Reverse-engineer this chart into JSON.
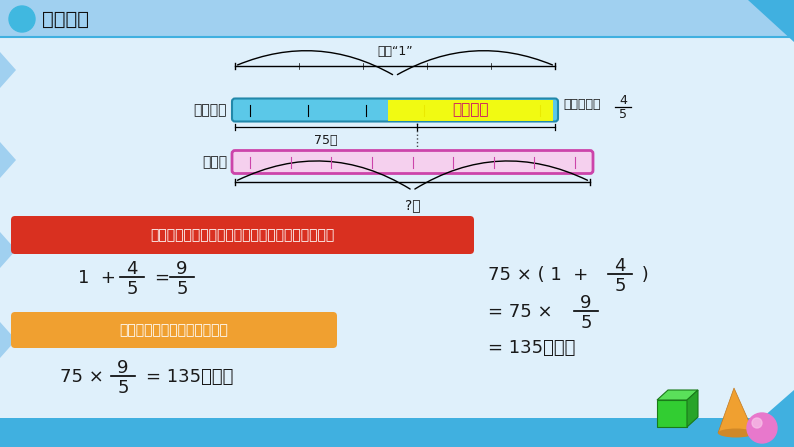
{
  "bg_color": "#e8f4fc",
  "header_color": "#87ceeb",
  "title": "新课譲解",
  "title_color": "#1a1a1a",
  "slide_bg": "#dff0fb",
  "bar1_color": "#5bc8e8",
  "bar2_color": "#cc44aa",
  "highlight_yellow": "#ffff00",
  "highlight_box_text": "几分之几",
  "red_box_color": "#d93020",
  "red_box_text": "先求婴儿每分钟心跳的次数是青少年的几分之几。",
  "orange_box_color": "#f0a030",
  "orange_box_text": "再求婴儿每分钟心跳的次数。",
  "label_qingshaonian": "青少年：",
  "label_ying_er": "婴儿：",
  "label_75": "75次",
  "label_danwei": "单位“1”",
  "label_biduoshao": "比青少年多",
  "label_q_ci": "?次",
  "top_strip_color": "#a0d0f0",
  "bot_strip_color": "#40b0e0",
  "header_line_color": "#40b0e0"
}
